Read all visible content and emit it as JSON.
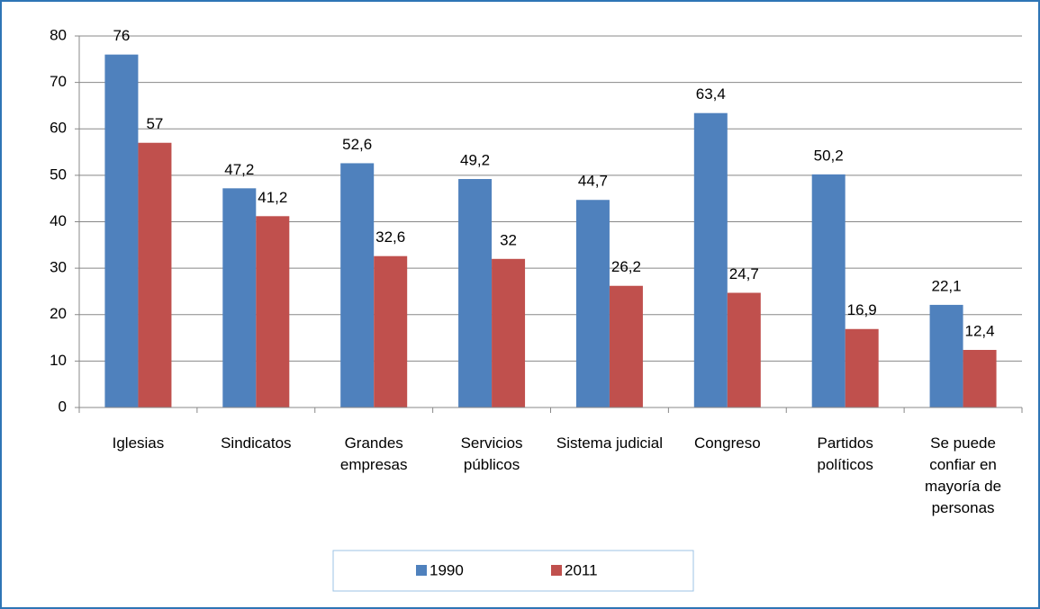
{
  "chart_data": {
    "type": "bar",
    "categories": [
      "Iglesias",
      "Sindicatos",
      "Grandes empresas",
      "Servicios públicos",
      "Sistema judicial",
      "Congreso",
      "Partidos políticos",
      "Se puede confiar en mayoría de personas"
    ],
    "series": [
      {
        "name": "1990",
        "color": "#4f81bd",
        "values": [
          76,
          47.2,
          52.6,
          49.2,
          44.7,
          63.4,
          50.2,
          22.1
        ],
        "value_labels": [
          "76",
          "47,2",
          "52,6",
          "49,2",
          "44,7",
          "63,4",
          "50,2",
          "22,1"
        ]
      },
      {
        "name": "2011",
        "color": "#c0504d",
        "values": [
          57,
          41.2,
          32.6,
          32,
          26.2,
          24.7,
          16.9,
          12.4
        ],
        "value_labels": [
          "57",
          "41,2",
          "32,6",
          "32",
          "26,2",
          "24,7",
          "16,9",
          "12,4"
        ]
      }
    ],
    "ylim": [
      0,
      80
    ],
    "yticks": [
      0,
      10,
      20,
      30,
      40,
      50,
      60,
      70,
      80
    ],
    "grid": true,
    "legend": "bottom"
  }
}
